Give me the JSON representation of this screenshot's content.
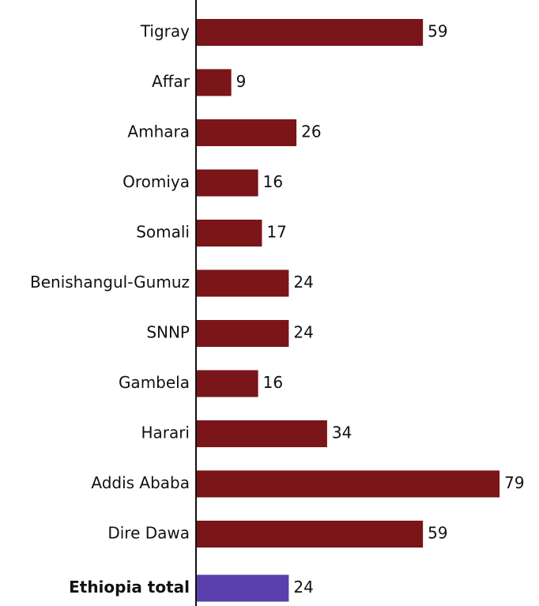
{
  "chart_data": {
    "type": "bar",
    "orientation": "horizontal",
    "categories": [
      "Tigray",
      "Affar",
      "Amhara",
      "Oromiya",
      "Somali",
      "Benishangul-Gumuz",
      "SNNP",
      "Gambela",
      "Harari",
      "Addis Ababa",
      "Dire Dawa",
      "Ethiopia total"
    ],
    "values": [
      59,
      9,
      26,
      16,
      17,
      24,
      24,
      16,
      34,
      79,
      59,
      24
    ],
    "colors": [
      "#7a1519",
      "#7a1519",
      "#7a1519",
      "#7a1519",
      "#7a1519",
      "#7a1519",
      "#7a1519",
      "#7a1519",
      "#7a1519",
      "#7a1519",
      "#7a1519",
      "#5a3fae"
    ]
  }
}
